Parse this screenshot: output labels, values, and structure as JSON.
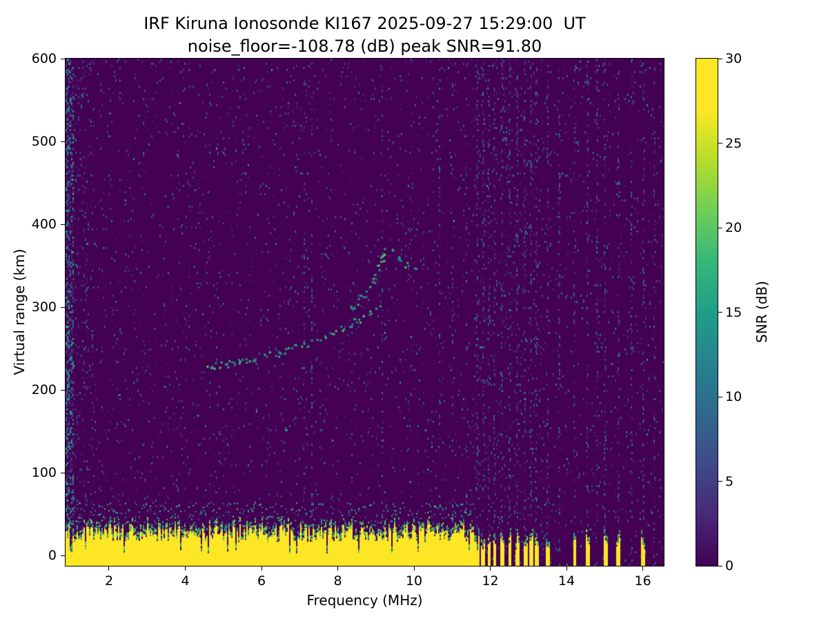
{
  "chart_data": {
    "type": "heatmap",
    "title": "IRF Kiruna Ionosonde KI167 2025-09-27 15:29:00  UT",
    "subtitle": "noise_floor=-108.78 (dB) peak SNR=91.80",
    "xlabel": "Frequency (MHz)",
    "ylabel": "Virtual range (km)",
    "x_range": [
      0.86,
      16.55
    ],
    "y_range": [
      -12.5,
      600
    ],
    "x_ticks": [
      2,
      4,
      6,
      8,
      10,
      12,
      14,
      16
    ],
    "y_ticks": [
      0,
      100,
      200,
      300,
      400,
      500,
      600
    ],
    "grid": false,
    "colorbar": {
      "label": "SNR (dB)",
      "range": [
        0,
        30
      ],
      "ticks": [
        0,
        5,
        10,
        15,
        20,
        25,
        30
      ],
      "colormap": "viridis"
    },
    "colormap_anchors": [
      [
        0.0,
        "#440154"
      ],
      [
        0.1,
        "#482878"
      ],
      [
        0.2,
        "#3e4a89"
      ],
      [
        0.3,
        "#31688e"
      ],
      [
        0.4,
        "#26828e"
      ],
      [
        0.5,
        "#1f9e89"
      ],
      [
        0.6,
        "#35b779"
      ],
      [
        0.7,
        "#6ece58"
      ],
      [
        0.8,
        "#b5de2b"
      ],
      [
        0.9,
        "#fde725"
      ],
      [
        1.0,
        "#fde725"
      ]
    ],
    "features": {
      "noise_floor_db": -108.78,
      "peak_snr_db": 91.8,
      "background_snr_db": 0,
      "noise_speckle_density": 0.05,
      "ground_clutter": {
        "f_start_mhz": 0.86,
        "f_end_mhz": 11.6,
        "height_min_km": 16,
        "height_max_km": 38,
        "snr_db": 30
      },
      "clutter_spikes_mhz": [
        11.65,
        11.8,
        11.95,
        12.1,
        12.3,
        12.5,
        12.7,
        12.9,
        13.05,
        13.2,
        13.5,
        14.2,
        14.55,
        15.0,
        15.35,
        16.0
      ],
      "interference_lines_mhz": [
        11.65,
        11.8,
        11.95,
        12.1,
        12.3,
        12.5,
        12.7,
        12.9,
        13.05,
        13.2,
        13.5,
        13.8,
        14.2,
        14.55,
        14.8,
        15.0,
        15.35,
        15.7,
        16.0,
        16.3
      ],
      "weak_lines_mhz": [
        7.1,
        7.3,
        9.15,
        10.65,
        11.0,
        11.35
      ],
      "echo_traces": [
        {
          "name": "F-trace-main",
          "points_mhz_km": [
            [
              4.6,
              228
            ],
            [
              4.9,
              231
            ],
            [
              5.2,
              233
            ],
            [
              5.6,
              236
            ],
            [
              6.0,
              240
            ],
            [
              6.4,
              245
            ],
            [
              6.8,
              250
            ],
            [
              7.2,
              257
            ],
            [
              7.6,
              264
            ],
            [
              8.0,
              272
            ],
            [
              8.3,
              280
            ],
            [
              8.6,
              288
            ],
            [
              8.9,
              296
            ],
            [
              9.1,
              302
            ]
          ]
        },
        {
          "name": "F-trace-upper",
          "points_mhz_km": [
            [
              8.3,
              298
            ],
            [
              8.5,
              306
            ],
            [
              8.7,
              316
            ],
            [
              8.9,
              330
            ],
            [
              9.0,
              342
            ],
            [
              9.1,
              355
            ],
            [
              9.2,
              368
            ],
            [
              9.3,
              375
            ]
          ]
        },
        {
          "name": "F-trace-spread",
          "points_mhz_km": [
            [
              9.4,
              368
            ],
            [
              9.6,
              358
            ],
            [
              9.8,
              350
            ],
            [
              10.1,
              342
            ]
          ]
        }
      ]
    }
  }
}
